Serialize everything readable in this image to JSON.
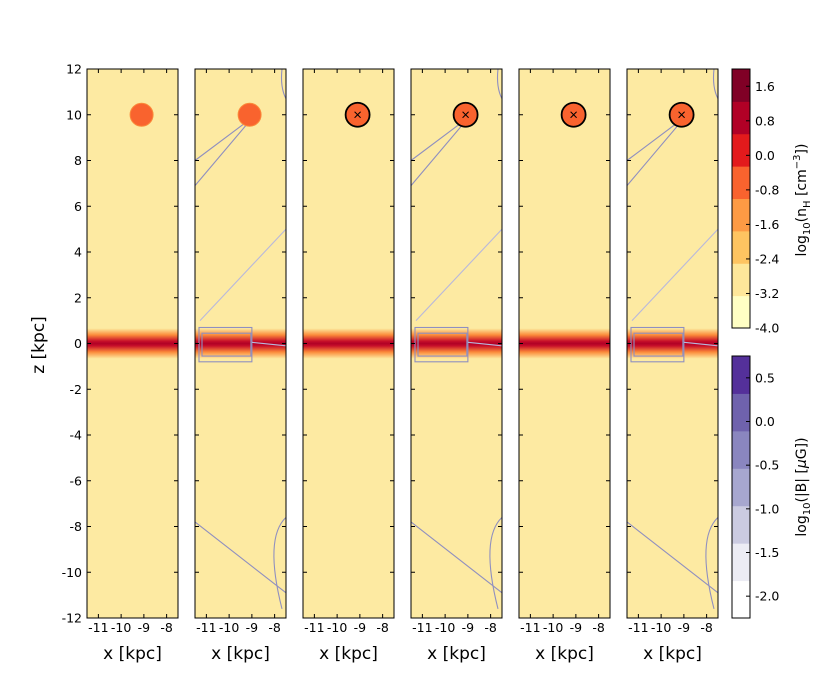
{
  "chart_data": {
    "type": "heatmap",
    "panels": 6,
    "xlabel": "x [kpc]",
    "ylabel": "z [kpc]",
    "xticks": [
      "-11",
      "-10",
      "-9",
      "-8"
    ],
    "yticks": [
      "12",
      "10",
      "8",
      "6",
      "4",
      "2",
      "0",
      "-2",
      "-4",
      "-6",
      "-8",
      "-10",
      "-12"
    ],
    "xlim": [
      -11.5,
      -7.5
    ],
    "ylim": [
      -12,
      12
    ],
    "cloud_center": {
      "x": -9.1,
      "z": 10.0
    },
    "cloud_marked": [
      false,
      false,
      true,
      true,
      true,
      true
    ],
    "field_contours": [
      false,
      true,
      false,
      true,
      false,
      true
    ],
    "disk_z_range": [
      -0.4,
      0.4
    ],
    "density_colorbar": {
      "label_prefix": "log",
      "label_sub": "10",
      "label_main": "(n",
      "label_main_sub": "H",
      "label_units": " [cm",
      "label_units_sup": "−3",
      "label_close": "])",
      "ticks": [
        "1.6",
        "0.8",
        "0.0",
        "-0.8",
        "-1.6",
        "-2.4",
        "-3.2",
        "-4.0"
      ],
      "range": [
        -4.0,
        2.0
      ],
      "colors": [
        "#ffffc4",
        "#fee79a",
        "#fec461",
        "#fd9a44",
        "#f9632e",
        "#e31a1c",
        "#b10026",
        "#800026"
      ]
    },
    "field_colorbar": {
      "label_prefix": "log",
      "label_sub": "10",
      "label_main": "(|B| [",
      "label_mu": "μ",
      "label_units": "G])",
      "ticks": [
        "0.5",
        "0.0",
        "-0.5",
        "-1.0",
        "-1.5",
        "-2.0"
      ],
      "range": [
        -2.25,
        0.75
      ],
      "colors": [
        "#ffffff",
        "#ececf4",
        "#cbcbe1",
        "#a7a7cf",
        "#8a86bf",
        "#6f62ad",
        "#54309a"
      ]
    }
  }
}
